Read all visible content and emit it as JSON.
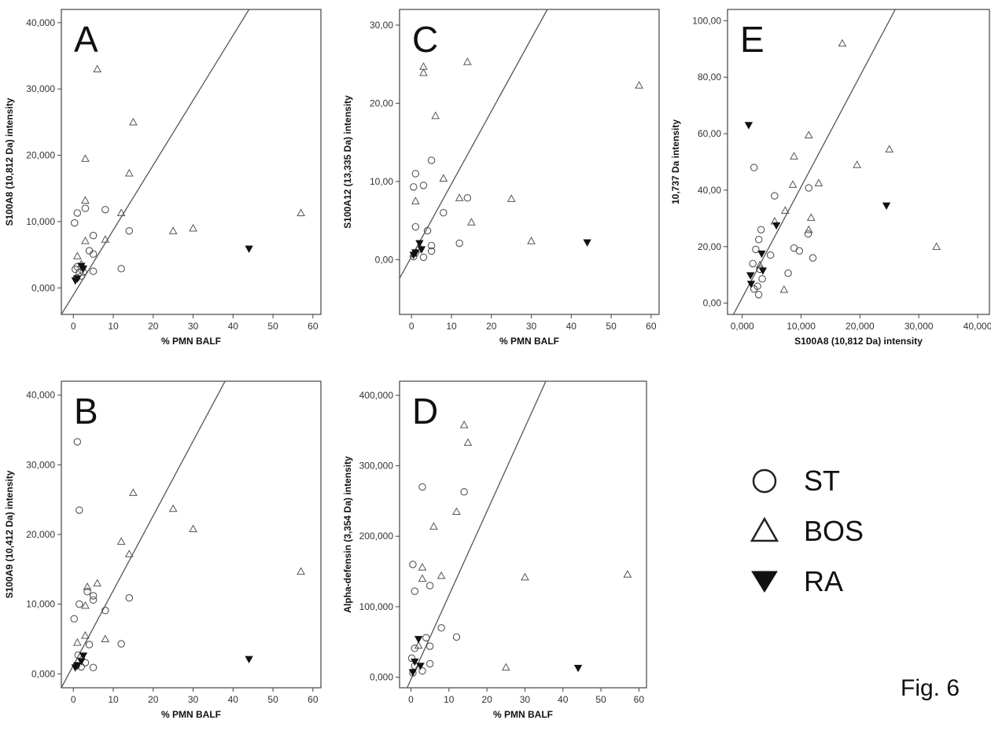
{
  "figure_label": "Fig. 6",
  "legend": [
    {
      "symbol": "circle",
      "label": "ST"
    },
    {
      "symbol": "triangle",
      "label": "BOS"
    },
    {
      "symbol": "triangle-down",
      "label": "RA"
    }
  ],
  "colors": {
    "marker": "#555555",
    "frame": "#444444",
    "fit_line": "#555555"
  },
  "chart_data": [
    {
      "type": "scatter",
      "panel": "A",
      "xlabel": "% PMN BALF",
      "ylabel": "S100A8 (10,812 Da) intensity",
      "xlim": [
        -3,
        62
      ],
      "ylim": [
        -4000,
        42000
      ],
      "xticks": [
        0,
        10,
        20,
        30,
        40,
        50,
        60
      ],
      "xtick_labels": [
        "0",
        "10",
        "20",
        "30",
        "40",
        "50",
        "60"
      ],
      "yticks": [
        0,
        10000,
        20000,
        30000,
        40000
      ],
      "ytick_labels": [
        "0,000",
        "10,000",
        "20,000",
        "30,000",
        "40,000"
      ],
      "fit_line": {
        "x": [
          -3,
          44
        ],
        "y": [
          -4000,
          42000
        ]
      },
      "series": [
        {
          "name": "ST",
          "marker": "circle",
          "points": [
            [
              0.3,
              9800
            ],
            [
              1,
              11300
            ],
            [
              3,
              12000
            ],
            [
              8,
              11800
            ],
            [
              5,
              7900
            ],
            [
              4,
              5600
            ],
            [
              5,
              5100
            ],
            [
              5,
              2500
            ],
            [
              0.5,
              2800
            ],
            [
              1,
              3200
            ],
            [
              1.5,
              2300
            ],
            [
              2,
              1800
            ],
            [
              12,
              2900
            ],
            [
              14,
              8600
            ],
            [
              0.8,
              1500
            ],
            [
              2.5,
              2400
            ]
          ]
        },
        {
          "name": "BOS",
          "marker": "triangle",
          "points": [
            [
              6,
              33000
            ],
            [
              3,
              19500
            ],
            [
              15,
              25000
            ],
            [
              14,
              17300
            ],
            [
              3,
              13200
            ],
            [
              12,
              11300
            ],
            [
              8,
              7300
            ],
            [
              3,
              7100
            ],
            [
              1,
              4800
            ],
            [
              25,
              8600
            ],
            [
              30,
              9000
            ],
            [
              57,
              11300
            ],
            [
              2,
              3600
            ]
          ]
        },
        {
          "name": "RA",
          "marker": "triangle-down",
          "points": [
            [
              44,
              5900
            ],
            [
              2,
              3300
            ],
            [
              1,
              1400
            ],
            [
              2.5,
              2900
            ],
            [
              0.5,
              1100
            ]
          ]
        }
      ]
    },
    {
      "type": "scatter",
      "panel": "B",
      "xlabel": "% PMN BALF",
      "ylabel": "S100A9 (10,412 Da) intensity",
      "xlim": [
        -3,
        62
      ],
      "ylim": [
        -2000,
        42000
      ],
      "xticks": [
        0,
        10,
        20,
        30,
        40,
        50,
        60
      ],
      "xtick_labels": [
        "0",
        "10",
        "20",
        "30",
        "40",
        "50",
        "60"
      ],
      "yticks": [
        0,
        10000,
        20000,
        30000,
        40000
      ],
      "ytick_labels": [
        "0,000",
        "10,000",
        "20,000",
        "30,000",
        "40,000"
      ],
      "fit_line": {
        "x": [
          -3,
          38
        ],
        "y": [
          -2000,
          42000
        ]
      },
      "series": [
        {
          "name": "ST",
          "marker": "circle",
          "points": [
            [
              1,
              33300
            ],
            [
              1.5,
              23500
            ],
            [
              0.2,
              7900
            ],
            [
              1.5,
              10000
            ],
            [
              3.5,
              11800
            ],
            [
              5,
              11200
            ],
            [
              5,
              10600
            ],
            [
              8,
              9100
            ],
            [
              14,
              10900
            ],
            [
              12,
              4300
            ],
            [
              4,
              4200
            ],
            [
              5,
              900
            ],
            [
              2,
              1000
            ],
            [
              1.2,
              2700
            ],
            [
              3,
              1600
            ],
            [
              0.8,
              1200
            ]
          ]
        },
        {
          "name": "BOS",
          "marker": "triangle",
          "points": [
            [
              15,
              26000
            ],
            [
              25,
              23700
            ],
            [
              30,
              20800
            ],
            [
              12,
              19000
            ],
            [
              14,
              17200
            ],
            [
              57,
              14700
            ],
            [
              6,
              13000
            ],
            [
              3.5,
              12500
            ],
            [
              3,
              9800
            ],
            [
              8,
              5000
            ],
            [
              3,
              5500
            ],
            [
              1,
              4500
            ]
          ]
        },
        {
          "name": "RA",
          "marker": "triangle-down",
          "points": [
            [
              44,
              2100
            ],
            [
              2,
              1800
            ],
            [
              1,
              1200
            ],
            [
              2.5,
              2600
            ],
            [
              0.5,
              900
            ]
          ]
        }
      ]
    },
    {
      "type": "scatter",
      "panel": "C",
      "xlabel": "% PMN BALF",
      "ylabel": "S100A12 (13,335 Da) intensity",
      "xlim": [
        -3,
        62
      ],
      "ylim": [
        -7000,
        32000
      ],
      "xticks": [
        0,
        10,
        20,
        30,
        40,
        50,
        60
      ],
      "xtick_labels": [
        "0",
        "10",
        "20",
        "30",
        "40",
        "50",
        "60"
      ],
      "yticks": [
        0,
        10000,
        20000,
        30000
      ],
      "ytick_labels": [
        "0,00",
        "10,00",
        "20,00",
        "30,00"
      ],
      "fit_line": {
        "x": [
          -3,
          34
        ],
        "y": [
          -2400,
          32000
        ]
      },
      "series": [
        {
          "name": "ST",
          "marker": "circle",
          "points": [
            [
              5,
              12700
            ],
            [
              1,
              11000
            ],
            [
              0.5,
              9300
            ],
            [
              3,
              9500
            ],
            [
              8,
              6000
            ],
            [
              14,
              7900
            ],
            [
              1,
              4200
            ],
            [
              4,
              3700
            ],
            [
              12,
              2100
            ],
            [
              5,
              1800
            ],
            [
              5,
              1100
            ],
            [
              3,
              300
            ],
            [
              1,
              900
            ],
            [
              2,
              1400
            ],
            [
              0.5,
              400
            ]
          ]
        },
        {
          "name": "BOS",
          "marker": "triangle",
          "points": [
            [
              3,
              24700
            ],
            [
              3,
              23900
            ],
            [
              14,
              25300
            ],
            [
              57,
              22300
            ],
            [
              6,
              18400
            ],
            [
              8,
              10400
            ],
            [
              1,
              7500
            ],
            [
              12,
              7900
            ],
            [
              25,
              7800
            ],
            [
              15,
              4800
            ],
            [
              30,
              2400
            ],
            [
              0.5,
              800
            ]
          ]
        },
        {
          "name": "RA",
          "marker": "triangle-down",
          "points": [
            [
              44,
              2200
            ],
            [
              2,
              2100
            ],
            [
              1,
              900
            ],
            [
              2.5,
              1300
            ],
            [
              0.5,
              600
            ]
          ]
        }
      ]
    },
    {
      "type": "scatter",
      "panel": "D",
      "xlabel": "% PMN BALF",
      "ylabel": "Alpha-defensin (3,354 Da) intensity",
      "xlim": [
        -3,
        62
      ],
      "ylim": [
        -15000,
        420000
      ],
      "xticks": [
        0,
        10,
        20,
        30,
        40,
        50,
        60
      ],
      "xtick_labels": [
        "0",
        "10",
        "20",
        "30",
        "40",
        "50",
        "60"
      ],
      "yticks": [
        0,
        100000,
        200000,
        300000,
        400000
      ],
      "ytick_labels": [
        "0,000",
        "100,000",
        "200,000",
        "300,000",
        "400,000"
      ],
      "fit_line": {
        "x": [
          -1,
          35.5
        ],
        "y": [
          -15000,
          420000
        ]
      },
      "series": [
        {
          "name": "ST",
          "marker": "circle",
          "points": [
            [
              3,
              270000
            ],
            [
              14,
              263000
            ],
            [
              0.5,
              160000
            ],
            [
              5,
              130000
            ],
            [
              1,
              122000
            ],
            [
              8,
              70000
            ],
            [
              12,
              57000
            ],
            [
              4,
              56000
            ],
            [
              5,
              44000
            ],
            [
              1,
              41000
            ],
            [
              0.2,
              27000
            ],
            [
              5,
              19000
            ],
            [
              3,
              9000
            ],
            [
              1,
              16000
            ],
            [
              0.5,
              6000
            ]
          ]
        },
        {
          "name": "BOS",
          "marker": "triangle",
          "points": [
            [
              14,
              358000
            ],
            [
              15,
              333000
            ],
            [
              6,
              214000
            ],
            [
              12,
              235000
            ],
            [
              3,
              156000
            ],
            [
              3,
              140000
            ],
            [
              8,
              144000
            ],
            [
              30,
              142000
            ],
            [
              57,
              146000
            ],
            [
              25,
              14000
            ],
            [
              2,
              45000
            ]
          ]
        },
        {
          "name": "RA",
          "marker": "triangle-down",
          "points": [
            [
              44,
              13000
            ],
            [
              2,
              54000
            ],
            [
              1,
              22000
            ],
            [
              0.5,
              7000
            ],
            [
              2.5,
              16000
            ]
          ]
        }
      ]
    },
    {
      "type": "scatter",
      "panel": "E",
      "xlabel": "S100A8 (10,812 Da) intensity",
      "ylabel": "10,737 Da intensity",
      "xlim": [
        -2500,
        42000
      ],
      "ylim": [
        -4000,
        104000
      ],
      "xticks": [
        0,
        10000,
        20000,
        30000,
        40000
      ],
      "xtick_labels": [
        "0,000",
        "10,000",
        "20,000",
        "30,000",
        "40,000"
      ],
      "yticks": [
        0,
        20000,
        40000,
        60000,
        80000,
        100000
      ],
      "ytick_labels": [
        "0,00",
        "20,00",
        "40,00",
        "60,00",
        "80,00",
        "100,00"
      ],
      "fit_line": {
        "x": [
          -1500,
          26000
        ],
        "y": [
          -4000,
          104000
        ]
      },
      "series": [
        {
          "name": "ST",
          "marker": "circle",
          "points": [
            [
              2000,
              48000
            ],
            [
              5500,
              38000
            ],
            [
              11300,
              40800
            ],
            [
              3200,
              26000
            ],
            [
              2800,
              22500
            ],
            [
              2300,
              19000
            ],
            [
              4800,
              17000
            ],
            [
              8800,
              19500
            ],
            [
              9700,
              18500
            ],
            [
              11200,
              24500
            ],
            [
              12000,
              16000
            ],
            [
              7800,
              10600
            ],
            [
              1800,
              14000
            ],
            [
              3400,
              8600
            ],
            [
              2600,
              6000
            ],
            [
              2800,
              3000
            ],
            [
              3000,
              12000
            ],
            [
              2000,
              5000
            ]
          ]
        },
        {
          "name": "BOS",
          "marker": "triangle",
          "points": [
            [
              17000,
              92000
            ],
            [
              11300,
              59500
            ],
            [
              8800,
              52000
            ],
            [
              8600,
              42000
            ],
            [
              13000,
              42500
            ],
            [
              25000,
              54500
            ],
            [
              19500,
              49000
            ],
            [
              11700,
              30300
            ],
            [
              11300,
              26000
            ],
            [
              7300,
              32800
            ],
            [
              5500,
              29000
            ],
            [
              7100,
              4800
            ],
            [
              33000,
              20000
            ],
            [
              3000,
              13500
            ]
          ]
        },
        {
          "name": "RA",
          "marker": "triangle-down",
          "points": [
            [
              1100,
              63000
            ],
            [
              24500,
              34500
            ],
            [
              5800,
              27500
            ],
            [
              3300,
              17500
            ],
            [
              3500,
              11500
            ],
            [
              1400,
              9800
            ],
            [
              1500,
              6800
            ]
          ]
        }
      ]
    }
  ]
}
